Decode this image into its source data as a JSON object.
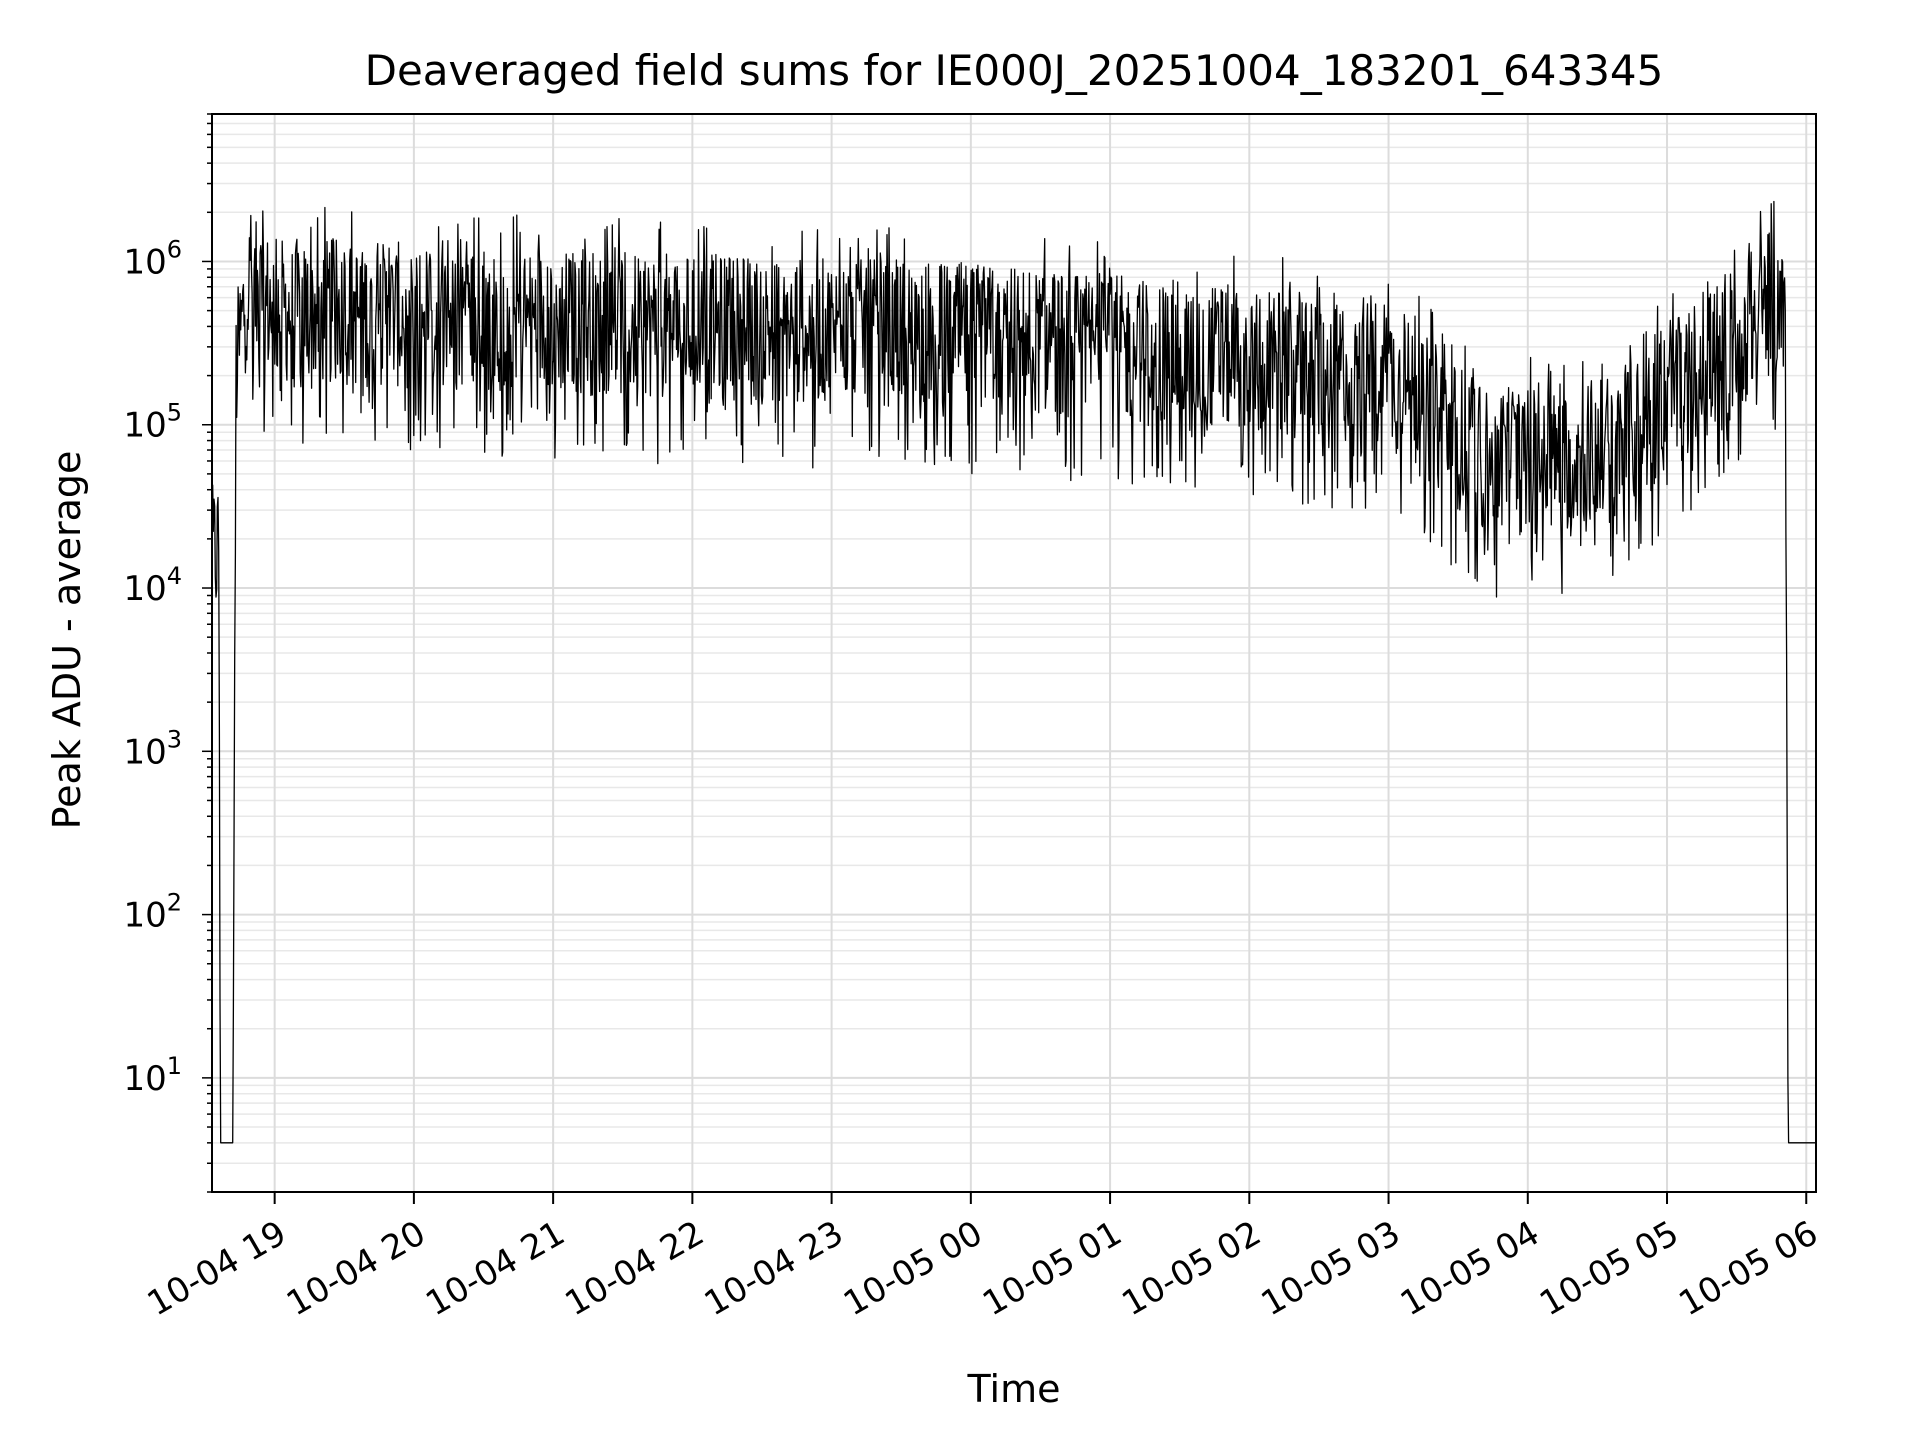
{
  "chart_data": {
    "type": "line",
    "title": "Deaveraged field sums for IE000J_20251004_183201_643345",
    "xlabel": "Time",
    "ylabel": "Peak ADU - average",
    "yscale": "log",
    "ylim": [
      2,
      8000000
    ],
    "xlim_hours": [
      18.55,
      30.07
    ],
    "grid": true,
    "x_ticks": [
      {
        "hours": 19,
        "label": "10-04 19"
      },
      {
        "hours": 20,
        "label": "10-04 20"
      },
      {
        "hours": 21,
        "label": "10-04 21"
      },
      {
        "hours": 22,
        "label": "10-04 22"
      },
      {
        "hours": 23,
        "label": "10-04 23"
      },
      {
        "hours": 24,
        "label": "10-05 00"
      },
      {
        "hours": 25,
        "label": "10-05 01"
      },
      {
        "hours": 26,
        "label": "10-05 02"
      },
      {
        "hours": 27,
        "label": "10-05 03"
      },
      {
        "hours": 28,
        "label": "10-05 04"
      },
      {
        "hours": 29,
        "label": "10-05 05"
      },
      {
        "hours": 30,
        "label": "10-05 06"
      }
    ],
    "y_ticks": [
      {
        "value": 10,
        "base": "10",
        "exp": "1"
      },
      {
        "value": 100,
        "base": "10",
        "exp": "2"
      },
      {
        "value": 1000,
        "base": "10",
        "exp": "3"
      },
      {
        "value": 10000,
        "base": "10",
        "exp": "4"
      },
      {
        "value": 100000,
        "base": "10",
        "exp": "5"
      },
      {
        "value": 1000000,
        "base": "10",
        "exp": "6"
      }
    ],
    "series": [
      {
        "name": "deaveraged field sums",
        "color": "#000000",
        "envelope": [
          {
            "hours": 18.55,
            "value": 15000
          },
          {
            "hours": 18.6,
            "value": 18000
          },
          {
            "hours": 18.61,
            "value": 4
          },
          {
            "hours": 18.7,
            "value": 4
          },
          {
            "hours": 18.72,
            "value": 200000
          },
          {
            "hours": 18.8,
            "value": 700000
          },
          {
            "hours": 19.0,
            "value": 500000
          },
          {
            "hours": 22.0,
            "value": 400000
          },
          {
            "hours": 24.0,
            "value": 350000
          },
          {
            "hours": 26.0,
            "value": 250000
          },
          {
            "hours": 27.0,
            "value": 200000
          },
          {
            "hours": 27.7,
            "value": 60000
          },
          {
            "hours": 28.2,
            "value": 60000
          },
          {
            "hours": 28.7,
            "value": 80000
          },
          {
            "hours": 29.2,
            "value": 200000
          },
          {
            "hours": 29.8,
            "value": 600000
          },
          {
            "hours": 29.85,
            "value": 300000
          },
          {
            "hours": 29.87,
            "value": 4
          },
          {
            "hours": 30.07,
            "value": 4
          }
        ]
      }
    ]
  }
}
